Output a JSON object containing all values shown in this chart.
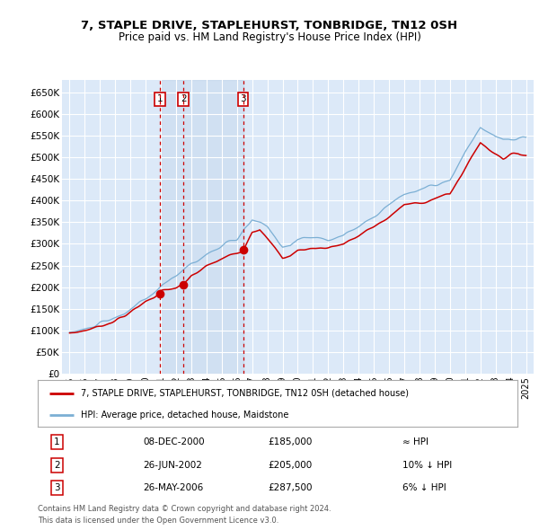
{
  "title": "7, STAPLE DRIVE, STAPLEHURST, TONBRIDGE, TN12 0SH",
  "subtitle": "Price paid vs. HM Land Registry's House Price Index (HPI)",
  "legend_label_red": "7, STAPLE DRIVE, STAPLEHURST, TONBRIDGE, TN12 0SH (detached house)",
  "legend_label_blue": "HPI: Average price, detached house, Maidstone",
  "transaction_labels": [
    "1",
    "2",
    "3"
  ],
  "transaction_dates": [
    2000.93,
    2002.49,
    2006.4
  ],
  "transaction_prices": [
    185000,
    205000,
    287500
  ],
  "transaction_info": [
    "08-DEC-2000",
    "26-JUN-2002",
    "26-MAY-2006"
  ],
  "transaction_amounts": [
    "£185,000",
    "£205,000",
    "£287,500"
  ],
  "transaction_hpi": [
    "≈ HPI",
    "10% ↓ HPI",
    "6% ↓ HPI"
  ],
  "footer1": "Contains HM Land Registry data © Crown copyright and database right 2024.",
  "footer2": "This data is licensed under the Open Government Licence v3.0.",
  "ylim": [
    0,
    680000
  ],
  "ytick_values": [
    0,
    50000,
    100000,
    150000,
    200000,
    250000,
    300000,
    350000,
    400000,
    450000,
    500000,
    550000,
    600000,
    650000
  ],
  "ytick_labels": [
    "£0",
    "£50K",
    "£100K",
    "£150K",
    "£200K",
    "£250K",
    "£300K",
    "£350K",
    "£400K",
    "£450K",
    "£500K",
    "£550K",
    "£600K",
    "£650K"
  ],
  "xlim_start": 1994.5,
  "xlim_end": 2025.5,
  "background_color": "#dce9f8",
  "grid_color": "#ffffff",
  "red_color": "#cc0000",
  "blue_color": "#7bafd4",
  "vline_color": "#cc0000",
  "shade_alpha": 0.18
}
